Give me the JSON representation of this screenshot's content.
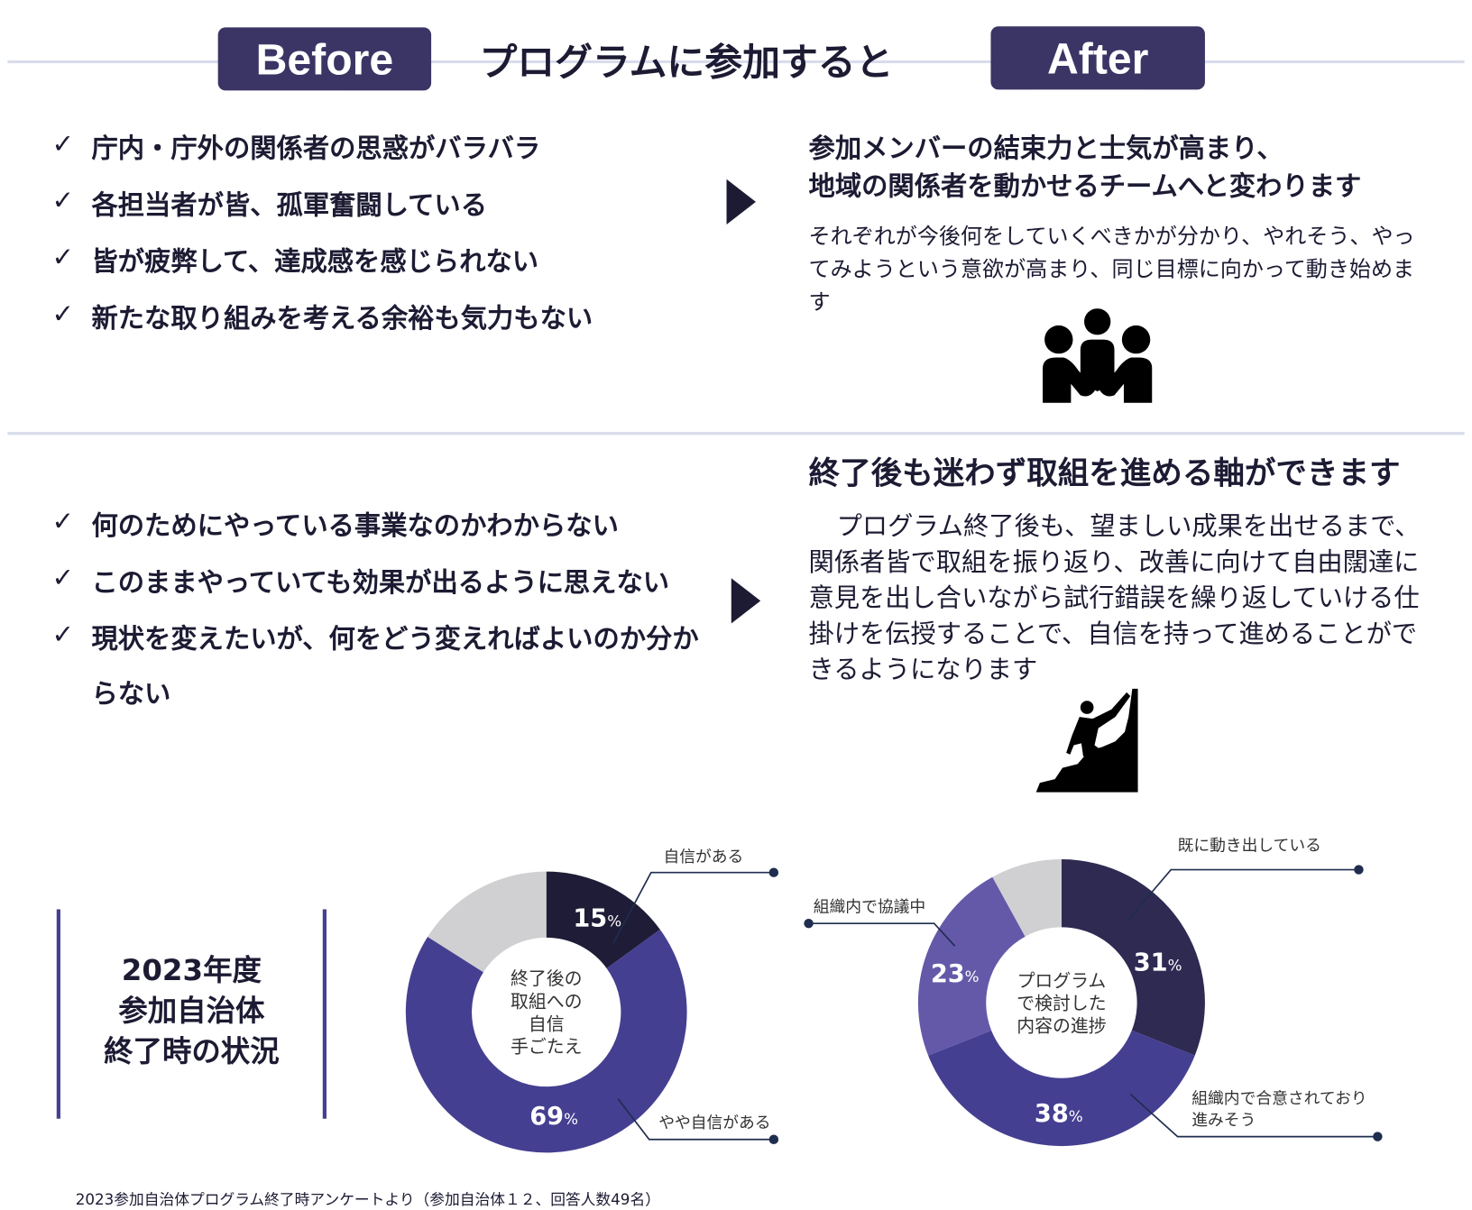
{
  "header": {
    "before_label": "Before",
    "title": "プログラムに参加すると",
    "after_label": "After"
  },
  "section1": {
    "before_items": [
      "庁内・庁外の関係者の思惑がバラバラ",
      "各担当者が皆、孤軍奮闘している",
      "皆が疲弊して、達成感を感じられない",
      "新たな取り組みを考える余裕も気力もない"
    ],
    "after_heading_lines": [
      "参加メンバーの結束力と士気が高まり、",
      "地域の関係者を動かせるチームへと変わります"
    ],
    "after_body": "それぞれが今後何をしていくべきかが分かり、やれそう、やってみようという意欲が高まり、同じ目標に向かって動き始めます",
    "icon": "team-huddle-icon"
  },
  "section2": {
    "before_items": [
      "何のためにやっている事業なのかわからない",
      "このままやっていても効果が出るように思えない",
      "現状を変えたいが、何をどう変えればよいのか分か"
    ],
    "before_item_continuation": "らない",
    "after_heading": "終了後も迷わず取組を進める軸ができます",
    "after_body": "プログラム終了後も、望ましい成果を出せるまで、関係者皆で取組を振り返り、改善に向けて自由闊達に意見を出し合いながら試行錯誤を繰り返していける仕掛けを伝授することで、自信を持って進めることができるようになります",
    "icon": "mountain-climber-icon"
  },
  "summary_lines": [
    "2023年度",
    "参加自治体",
    "終了時の状況"
  ],
  "check_mark": "✓",
  "colors": {
    "badge": "#3b3566",
    "text": "#1c1b33",
    "accent": "#453f91",
    "divider": "#d8dcec"
  },
  "chart_data": [
    {
      "type": "pie",
      "donut": true,
      "center_label_lines": [
        "終了後の",
        "取組への",
        "自信",
        "手ごたえ"
      ],
      "slices": [
        {
          "label": "自信がある",
          "value": 15,
          "display": "15",
          "color": "#1e1c36"
        },
        {
          "label": "やや自信がある",
          "value": 69,
          "display": "69",
          "color": "#453f91"
        },
        {
          "label": "",
          "value": 16,
          "color": "#d0cfd1"
        }
      ],
      "unit": "%"
    },
    {
      "type": "pie",
      "donut": true,
      "center_label_lines": [
        "プログラム",
        "で検討した",
        "内容の進捗"
      ],
      "slices": [
        {
          "label": "既に動き出している",
          "value": 31,
          "display": "31",
          "color": "#2e2a52"
        },
        {
          "label": "組織内で合意されており進みそう",
          "label_lines": [
            "組織内で合意されており",
            "進みそう"
          ],
          "value": 38,
          "display": "38",
          "color": "#453f91"
        },
        {
          "label": "組織内で協議中",
          "value": 23,
          "display": "23",
          "color": "#6459a8"
        },
        {
          "label": "",
          "value": 8,
          "color": "#d0cfd1"
        }
      ],
      "unit": "%"
    }
  ],
  "footnote": "2023参加自治体プログラム終了時アンケートより（参加自治体１２、回答人数49名）"
}
